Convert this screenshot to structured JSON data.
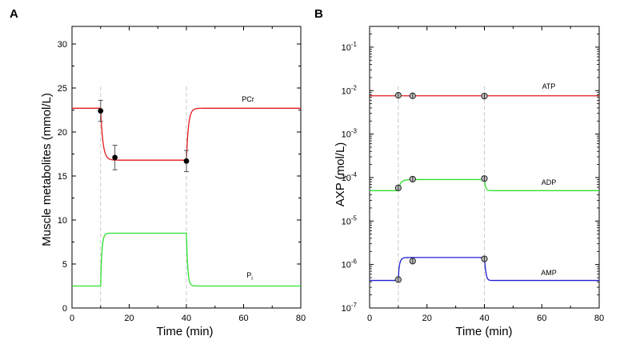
{
  "chart_data": [
    {
      "panel": "A",
      "type": "line",
      "ylabel": "Muscle metabolites (mmol/L)",
      "xlabel": "Time (min)",
      "xlim": [
        0,
        80
      ],
      "ylim": [
        0,
        32
      ],
      "yscale": "linear",
      "xticks": [
        "0",
        "20",
        "40",
        "60",
        "80"
      ],
      "yticks": [
        "0",
        "5",
        "10",
        "15",
        "20",
        "25",
        "30"
      ],
      "vertical_markers_x": [
        10,
        40
      ],
      "series": [
        {
          "label": "PCr",
          "color": "#e31a1c",
          "model": {
            "baseline": 22.7,
            "plateau": 16.8,
            "t_on": 10,
            "t_off": 40,
            "tau_on": 0.8,
            "tau_off": 0.7
          },
          "points": [
            {
              "x": 10,
              "y": 22.4,
              "err": 1.2
            },
            {
              "x": 15,
              "y": 17.1,
              "err": 1.4
            },
            {
              "x": 40,
              "y": 16.7,
              "err": 1.2
            }
          ]
        },
        {
          "label": "P",
          "label_sub": "i",
          "color": "#2ee02e",
          "model": {
            "baseline": 2.5,
            "plateau": 8.5,
            "t_on": 10,
            "t_off": 40,
            "tau_on": 0.45,
            "tau_off": 0.45
          },
          "points": []
        }
      ]
    },
    {
      "panel": "B",
      "type": "line",
      "ylabel": "AXP (mol/L)",
      "xlabel": "Time (min)",
      "xlim": [
        0,
        80
      ],
      "ylim": [
        1e-07,
        0.3
      ],
      "yscale": "log",
      "xticks": [
        "0",
        "20",
        "40",
        "60",
        "80"
      ],
      "yticks": [
        {
          "base": "10",
          "exp": "-7"
        },
        {
          "base": "10",
          "exp": "-6"
        },
        {
          "base": "10",
          "exp": "-5"
        },
        {
          "base": "10",
          "exp": "-4"
        },
        {
          "base": "10",
          "exp": "-3"
        },
        {
          "base": "10",
          "exp": "-2"
        },
        {
          "base": "10",
          "exp": "-1"
        }
      ],
      "vertical_markers_x": [
        10,
        40
      ],
      "series": [
        {
          "label": "ATP",
          "color": "#e31a1c",
          "model": {
            "baseline": 0.0076,
            "plateau": 0.0076,
            "t_on": 10,
            "t_off": 40,
            "tau_on": 1,
            "tau_off": 1
          },
          "points": [
            {
              "x": 10,
              "y": 0.0078
            },
            {
              "x": 15,
              "y": 0.0076
            },
            {
              "x": 40,
              "y": 0.0075
            }
          ]
        },
        {
          "label": "ADP",
          "color": "#2ee02e",
          "model": {
            "baseline": 5e-05,
            "plateau": 9e-05,
            "t_on": 10,
            "t_off": 40,
            "tau_on": 0.9,
            "tau_off": 0.35
          },
          "points": [
            {
              "x": 10,
              "y": 5.8e-05
            },
            {
              "x": 15,
              "y": 9.2e-05
            },
            {
              "x": 40,
              "y": 9.5e-05
            }
          ]
        },
        {
          "label": "AMP",
          "color": "#1f1fcf",
          "model": {
            "baseline": 4.3e-07,
            "plateau": 1.45e-06,
            "t_on": 10,
            "t_off": 40,
            "tau_on": 0.55,
            "tau_off": 0.35
          },
          "points": [
            {
              "x": 10,
              "y": 4.5e-07
            },
            {
              "x": 15,
              "y": 1.2e-06
            },
            {
              "x": 40,
              "y": 1.35e-06
            }
          ]
        }
      ]
    }
  ]
}
